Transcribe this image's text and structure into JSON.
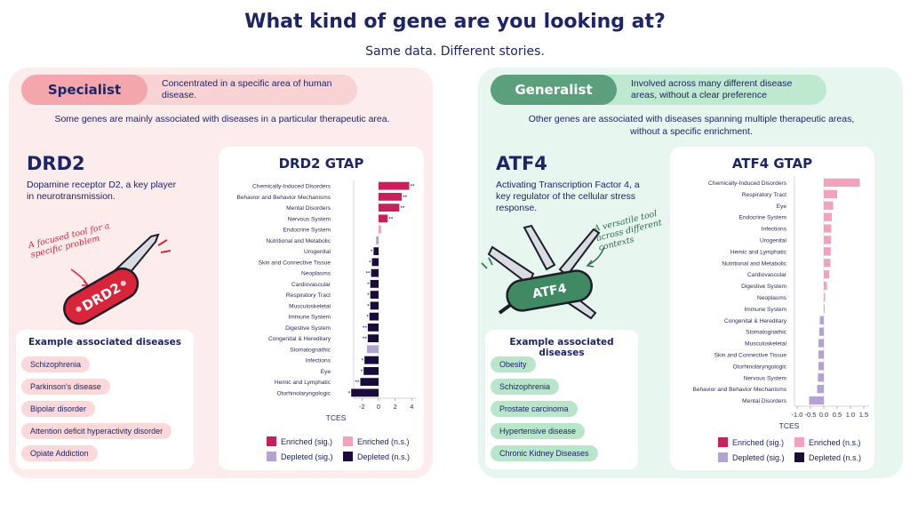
{
  "header": {
    "title": "What kind of gene are you looking at?",
    "subtitle": "Same data. Different stories."
  },
  "colors": {
    "enriched_sig": "#c8205a",
    "enriched_ns": "#f2a1bf",
    "depleted_sig": "#b4a2d0",
    "depleted_ns": "#1b0b3a",
    "specialist_bg": "#fdecec",
    "generalist_bg": "#e7f6ee"
  },
  "specialist": {
    "tag": "Specialist",
    "tag_desc": "Concentrated in a specific area of human disease.",
    "intro": "Some genes are mainly associated with diseases in a particular therapeutic area.",
    "gene": "DRD2",
    "gene_desc": "Dopamine receptor D2, a key player in neurotransmission.",
    "note": "A focused tool for a specific problem",
    "knife_label": "DRD2",
    "examples_title": "Example associated diseases",
    "examples": [
      "Schizophrenia",
      "Parkinson's disease",
      "Bipolar disorder",
      "Attention deficit hyperactivity disorder",
      "Opiate Addiction"
    ]
  },
  "generalist": {
    "tag": "Generalist",
    "tag_desc": "Involved across many different disease areas, without a clear preference",
    "intro": "Other genes are associated with diseases spanning multiple therapeutic areas, without a specific enrichment.",
    "gene": "ATF4",
    "gene_desc": "Activating Transcription Factor 4, a key regulator of the cellular stress response.",
    "note": "A versatile tool across different contexts",
    "knife_label": "ATF4",
    "examples_title": "Example associated diseases",
    "examples": [
      "Obesity",
      "Schizophrenia",
      "Prostate carcinoma",
      "Hypertensive disease",
      "Chronic Kidney Diseases"
    ]
  },
  "legend": {
    "enriched_sig": "Enriched (sig.)",
    "enriched_ns": "Enriched (n.s.)",
    "depleted_sig": "Depleted (sig.)",
    "depleted_ns": "Depleted (n.s.)"
  },
  "chart_data": [
    {
      "type": "bar",
      "orientation": "horizontal",
      "title": "DRD2 GTAP",
      "xlabel": "TCES",
      "xlim": [
        -3,
        4.5
      ],
      "xticks": [
        -2,
        0,
        2,
        4
      ],
      "categories": [
        "Chemically-Induced Disorders",
        "Behavior and Behavior Mechanisms",
        "Mental Disorders",
        "Nervous System",
        "Endocrine System",
        "Nutritional and Metabolic",
        "Urogenital",
        "Skin and Connective Tissue",
        "Neoplasms",
        "Cardiovascular",
        "Respiratory Tract",
        "Musculoskeletal",
        "Immune System",
        "Digestive System",
        "Congenital & Hereditary",
        "Stomatognathic",
        "Infections",
        "Eye",
        "Hemic and Lymphatic",
        "Otorhinolaryngologic"
      ],
      "values": [
        3.7,
        2.8,
        2.5,
        1.1,
        0.3,
        -0.3,
        -0.6,
        -0.8,
        -0.9,
        -1.0,
        -1.0,
        -1.0,
        -1.1,
        -1.3,
        -1.3,
        -1.4,
        -1.7,
        -1.8,
        -2.2,
        -3.3
      ],
      "status": [
        "enriched_sig",
        "enriched_sig",
        "enriched_sig",
        "enriched_sig",
        "enriched_ns",
        "depleted_sig",
        "depleted_ns",
        "depleted_ns",
        "depleted_ns",
        "depleted_ns",
        "depleted_ns",
        "depleted_ns",
        "depleted_ns",
        "depleted_ns",
        "depleted_ns",
        "depleted_sig",
        "depleted_ns",
        "depleted_ns",
        "depleted_ns",
        "depleted_ns"
      ],
      "marks": [
        "**",
        "**",
        "**",
        "**",
        "",
        "",
        "*",
        "*",
        "**",
        "*",
        "*",
        "*",
        "*",
        "**",
        "**",
        "",
        "*",
        "*",
        "**",
        "*"
      ]
    },
    {
      "type": "bar",
      "orientation": "horizontal",
      "title": "ATF4 GTAP",
      "xlabel": "TCES",
      "xlim": [
        -1.1,
        1.7
      ],
      "xticks": [
        -1.0,
        -0.5,
        0.0,
        0.5,
        1.0,
        1.5
      ],
      "categories": [
        "Chemically-Induced Disorders",
        "Respiratory Tract",
        "Eye",
        "Endocrine System",
        "Infections",
        "Urogenital",
        "Hemic and Lymphatic",
        "Nutritional and Metabolic",
        "Cardiovascular",
        "Digestive System",
        "Neoplasms",
        "Immune System",
        "Congenital & Hereditary",
        "Stomatognathic",
        "Musculoskeletal",
        "Skin and Connective Tissue",
        "Otorhinolaryngologic",
        "Nervous System",
        "Behavior and Behavior Mechanisms",
        "Mental Disorders"
      ],
      "values": [
        1.35,
        0.5,
        0.35,
        0.3,
        0.28,
        0.27,
        0.26,
        0.25,
        0.2,
        0.12,
        0.05,
        0.03,
        -0.15,
        -0.17,
        -0.2,
        -0.2,
        -0.2,
        -0.22,
        -0.25,
        -0.55
      ],
      "status": [
        "enriched_ns",
        "enriched_ns",
        "enriched_ns",
        "enriched_ns",
        "enriched_ns",
        "enriched_ns",
        "enriched_ns",
        "enriched_ns",
        "enriched_ns",
        "enriched_ns",
        "enriched_ns",
        "enriched_ns",
        "depleted_sig",
        "depleted_sig",
        "depleted_sig",
        "depleted_sig",
        "depleted_sig",
        "depleted_sig",
        "depleted_sig",
        "depleted_sig"
      ],
      "marks": []
    }
  ]
}
